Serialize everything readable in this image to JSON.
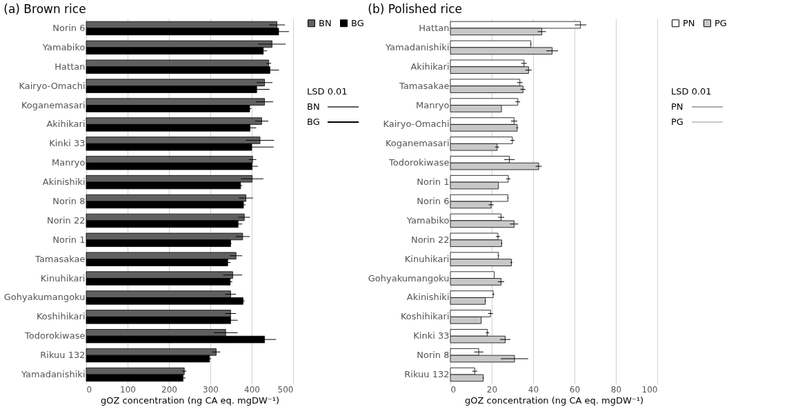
{
  "chart_data": [
    {
      "type": "bar",
      "orientation": "horizontal",
      "title": "(a) Brown rice",
      "xlabel": "gOZ concentration (ng CA eq. mgDW⁻¹)",
      "categories": [
        "Norin 6",
        "Yamabiko",
        "Hattan",
        "Kairyo-Omachi",
        "Koganemasari",
        "Akihikari",
        "Kinki 33",
        "Manryo",
        "Akinishiki",
        "Norin 8",
        "Norin 22",
        "Norin 1",
        "Tamasakae",
        "Kinuhikari",
        "Gohyakumangoku",
        "Koshihikari",
        "Todorokiwase",
        "Rikuu 132",
        "Yamadanishiki"
      ],
      "series": [
        {
          "name": "BN",
          "color": "#606060",
          "values": [
            461,
            449,
            441,
            431,
            431,
            424,
            420,
            402,
            401,
            386,
            382,
            378,
            362,
            354,
            349,
            349,
            337,
            314,
            237
          ],
          "errors": [
            19,
            33,
            6,
            19,
            21,
            16,
            34,
            9,
            27,
            17,
            14,
            17,
            15,
            23,
            13,
            13,
            29,
            10,
            5
          ]
        },
        {
          "name": "BG",
          "color": "#000000",
          "values": [
            465,
            428,
            444,
            412,
            395,
            396,
            400,
            401,
            373,
            380,
            367,
            349,
            342,
            348,
            379,
            349,
            431,
            298,
            234
          ],
          "errors": [
            25,
            9,
            22,
            31,
            4,
            15,
            53,
            14,
            4,
            5,
            10,
            2,
            7,
            5,
            4,
            17,
            28,
            4,
            6
          ]
        }
      ],
      "xlim": [
        0,
        500
      ],
      "xticks": [
        0,
        100,
        200,
        300,
        400,
        500
      ],
      "grid": "x",
      "legend": "right",
      "annotations": [
        "LSD 0.01",
        "BN",
        "BG"
      ]
    },
    {
      "type": "bar",
      "orientation": "horizontal",
      "title": "(b) Polished rice",
      "xlabel": "gOZ concentration (ng CA eq. mgDW⁻¹)",
      "categories": [
        "Hattan",
        "Yamadanishiki",
        "Akihikari",
        "Tamasakae",
        "Manryo",
        "Kairyo-Omachi",
        "Koganemasari",
        "Todorokiwase",
        "Norin 1",
        "Norin 6",
        "Yamabiko",
        "Norin 22",
        "Kinuhikari",
        "Gohyakumangoku",
        "Akinishiki",
        "Koshihikari",
        "Kinki 33",
        "Norin 8",
        "Rikuu 132"
      ],
      "series": [
        {
          "name": "PN",
          "color": "#ffffff",
          "values": [
            62.9,
            38.9,
            35.6,
            33.6,
            32.6,
            30.8,
            30.0,
            28.5,
            28.0,
            27.8,
            24.5,
            23.0,
            23.2,
            21.2,
            20.7,
            19.4,
            17.9,
            13.7,
            11.8
          ],
          "errors": [
            2.8,
            0.3,
            1.3,
            1.3,
            1.1,
            1.5,
            1.0,
            2.5,
            1.0,
            0.3,
            1.5,
            1.0,
            0.3,
            null,
            0.5,
            1.2,
            0.8,
            2.2,
            1.2
          ]
        },
        {
          "name": "PG",
          "color": "#c8c8c8",
          "values": [
            44.2,
            49.2,
            37.8,
            35.1,
            24.7,
            32.3,
            22.6,
            42.7,
            23.2,
            19.7,
            30.8,
            24.8,
            29.5,
            24.5,
            16.9,
            14.9,
            26.5,
            31.0,
            15.9
          ],
          "errors": [
            2.0,
            2.8,
            1.5,
            1.2,
            null,
            0.5,
            1.0,
            1.5,
            null,
            1.2,
            2.0,
            0.3,
            0.5,
            1.5,
            0.3,
            null,
            2.5,
            6.6,
            0.3
          ]
        }
      ],
      "xlim": [
        0,
        100
      ],
      "xticks": [
        0,
        20,
        40,
        60,
        80,
        100
      ],
      "grid": "x",
      "legend": "right",
      "annotations": [
        "LSD 0.01",
        "PN",
        "PG"
      ]
    }
  ]
}
